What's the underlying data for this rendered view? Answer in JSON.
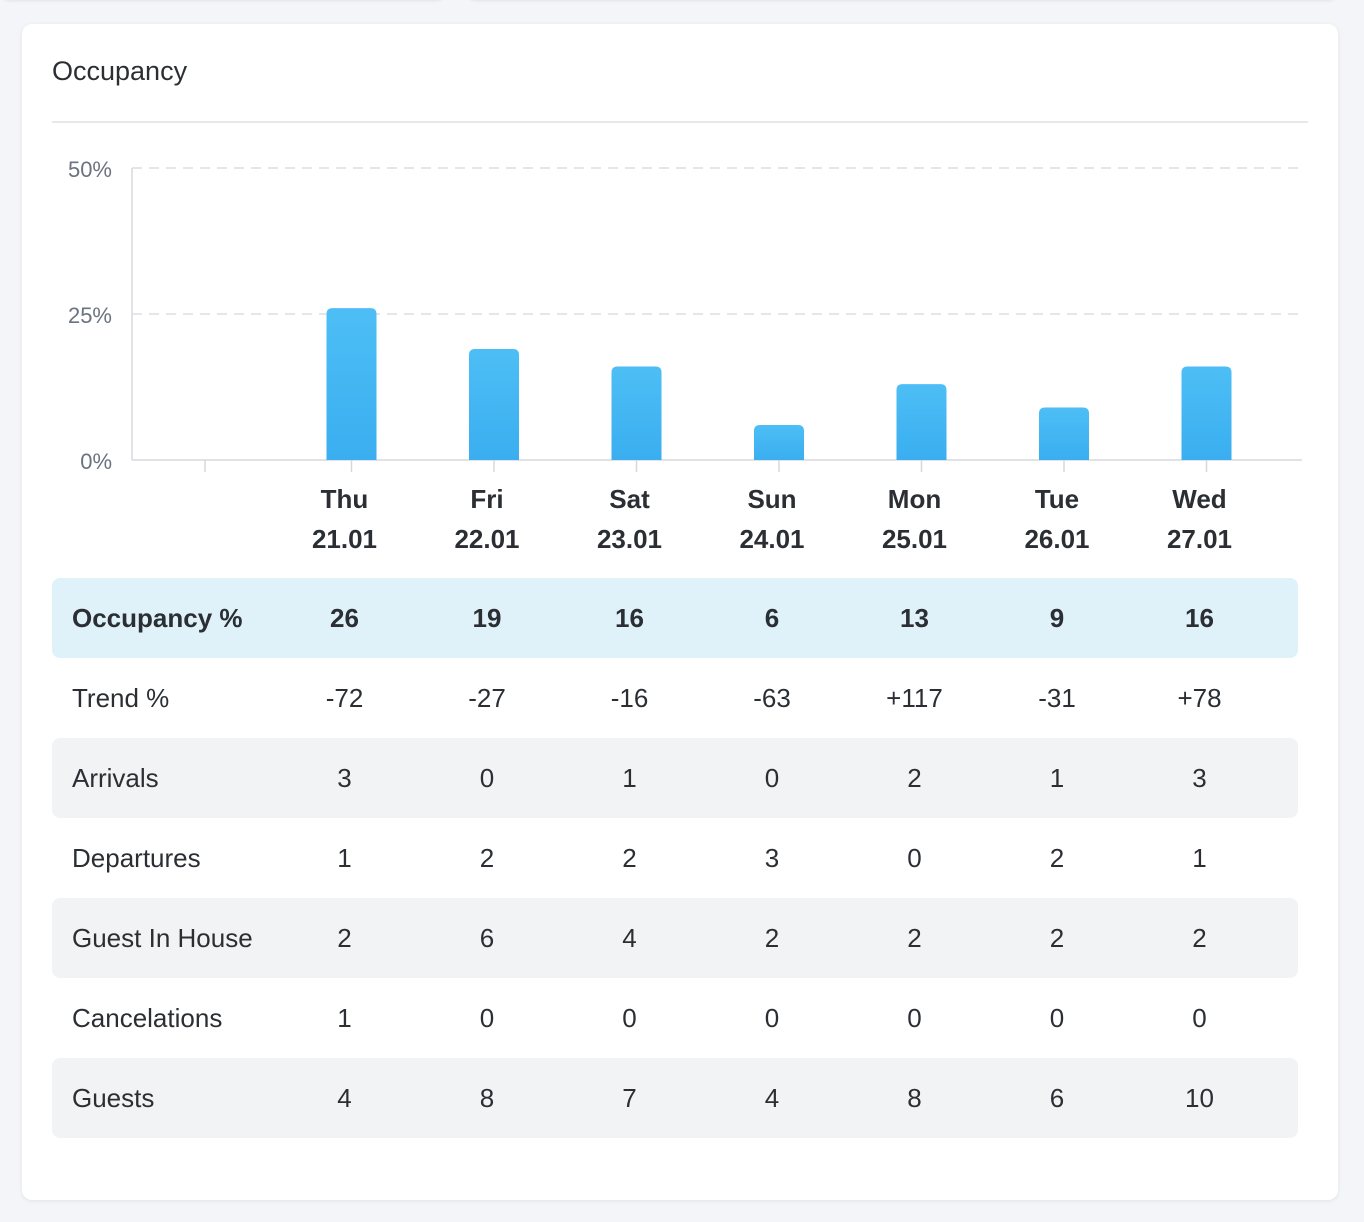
{
  "card": {
    "title": "Occupancy"
  },
  "chart_data": {
    "type": "bar",
    "categories": [
      {
        "day": "Thu",
        "date": "21.01"
      },
      {
        "day": "Fri",
        "date": "22.01"
      },
      {
        "day": "Sat",
        "date": "23.01"
      },
      {
        "day": "Sun",
        "date": "24.01"
      },
      {
        "day": "Mon",
        "date": "25.01"
      },
      {
        "day": "Tue",
        "date": "26.01"
      },
      {
        "day": "Wed",
        "date": "27.01"
      }
    ],
    "values": [
      26,
      19,
      16,
      6,
      13,
      9,
      16
    ],
    "yticks": [
      "0%",
      "25%",
      "50%"
    ],
    "ylim": [
      0,
      50
    ],
    "grid": true,
    "bar_color_top": "#4dbef5",
    "bar_color_bottom": "#3aaef0"
  },
  "table": {
    "rows": [
      {
        "label": "Occupancy %",
        "values": [
          "26",
          "19",
          "16",
          "6",
          "13",
          "9",
          "16"
        ]
      },
      {
        "label": "Trend %",
        "values": [
          "-72",
          "-27",
          "-16",
          "-63",
          "+117",
          "-31",
          "+78"
        ]
      },
      {
        "label": "Arrivals",
        "values": [
          "3",
          "0",
          "1",
          "0",
          "2",
          "1",
          "3"
        ]
      },
      {
        "label": "Departures",
        "values": [
          "1",
          "2",
          "2",
          "3",
          "0",
          "2",
          "1"
        ]
      },
      {
        "label": "Guest In House",
        "values": [
          "2",
          "6",
          "4",
          "2",
          "2",
          "2",
          "2"
        ]
      },
      {
        "label": "Cancelations",
        "values": [
          "1",
          "0",
          "0",
          "0",
          "0",
          "0",
          "0"
        ]
      },
      {
        "label": "Guests",
        "values": [
          "4",
          "8",
          "7",
          "4",
          "8",
          "6",
          "10"
        ]
      }
    ]
  }
}
